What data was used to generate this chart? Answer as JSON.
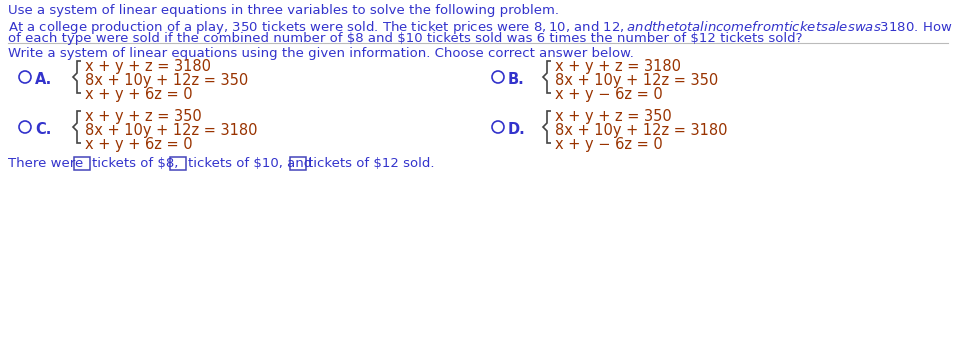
{
  "bg_color": "#ffffff",
  "blue": "#3333cc",
  "math_color": "#993300",
  "title": "Use a system of linear equations in three variables to solve the following problem.",
  "prob1": "At a college production of a play, 350 tickets were sold. The ticket prices were $8, $10, and $12, and the total income from ticket sales was $3180. How many tickets",
  "prob2": "of each type were sold if the combined number of $8 and $10 tickets sold was 6 times the number of $12 tickets sold?",
  "write": "Write a system of linear equations using the given information. Choose correct answer below.",
  "optA": [
    "x + y + z = 3180",
    "8x + 10y + 12z = 350",
    "x + y + 6z = 0"
  ],
  "optB": [
    "x + y + z = 3180",
    "8x + 10y + 12z = 350",
    "x + y − 6z = 0"
  ],
  "optC": [
    "x + y + z = 350",
    "8x + 10y + 12z = 3180",
    "x + y + 6z = 0"
  ],
  "optD": [
    "x + y + z = 350",
    "8x + 10y + 12z = 3180",
    "x + y − 6z = 0"
  ],
  "fs_text": 9.5,
  "fs_math": 10.5,
  "fs_label": 10.5
}
